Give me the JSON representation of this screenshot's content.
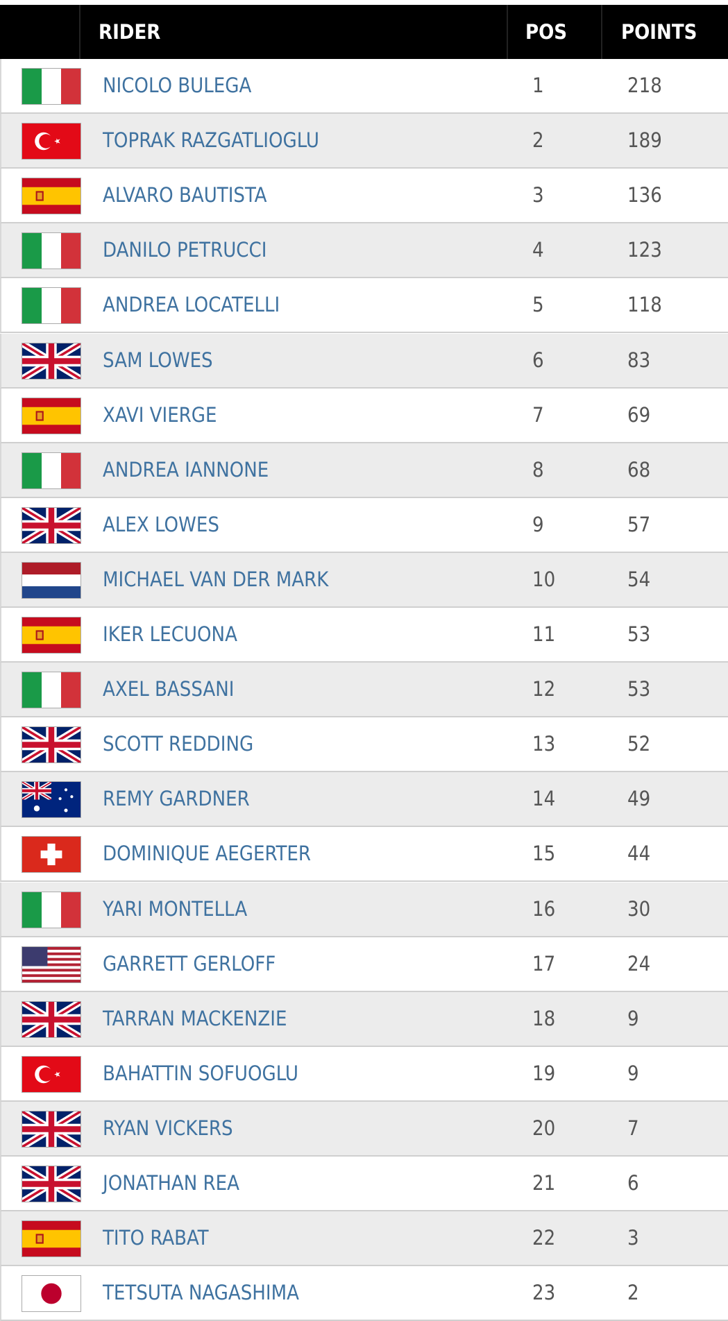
{
  "header": {
    "columns": [
      "RIDER",
      "POS",
      "POINTS"
    ]
  },
  "table": {
    "rows": [
      [
        "NICOLO BULEGA",
        1,
        218
      ],
      [
        "TOPRAK RAZGATLIOGLU",
        2,
        189
      ],
      [
        "ALVARO BAUTISTA",
        3,
        136
      ],
      [
        "DANILO PETRUCCI",
        4,
        123
      ],
      [
        "ANDREA LOCATELLI",
        5,
        118
      ],
      [
        "SAM LOWES",
        6,
        83
      ],
      [
        "XAVI VIERGE",
        7,
        69
      ],
      [
        "ANDREA IANNONE",
        8,
        68
      ],
      [
        "ALEX LOWES",
        9,
        57
      ],
      [
        "MICHAEL VAN DER MARK",
        10,
        54
      ],
      [
        "IKER LECUONA",
        11,
        53
      ],
      [
        "AXEL BASSANI",
        12,
        53
      ],
      [
        "SCOTT REDDING",
        13,
        52
      ],
      [
        "REMY GARDNER",
        14,
        49
      ],
      [
        "DOMINIQUE AEGERTER",
        15,
        44
      ],
      [
        "YARI MONTELLA",
        16,
        30
      ],
      [
        "GARRETT GERLOFF",
        17,
        24
      ],
      [
        "TARRAN MACKENZIE",
        18,
        9
      ],
      [
        "BAHATTIN SOFUOGLU",
        19,
        9
      ],
      [
        "RYAN VICKERS",
        20,
        7
      ],
      [
        "JONATHAN REA",
        21,
        6
      ],
      [
        "TITO RABAT",
        22,
        3
      ],
      [
        "TETSUTA NAGASHIMA",
        23,
        2
      ]
    ]
  }
}
